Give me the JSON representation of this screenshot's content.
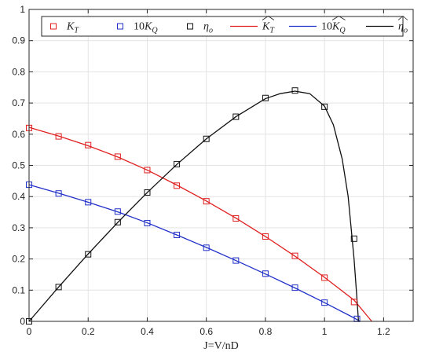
{
  "chart_data": {
    "type": "line",
    "title": "",
    "xlabel": "J=V/nD",
    "ylabel": "",
    "xlim": [
      0,
      1.3
    ],
    "ylim": [
      0,
      1
    ],
    "x_ticks": [
      "0",
      "0.2",
      "0.4",
      "0.6",
      "0.8",
      "1",
      "1.2"
    ],
    "x_tick_values": [
      0,
      0.2,
      0.4,
      0.6,
      0.8,
      1.0,
      1.2
    ],
    "y_ticks": [
      "0",
      "0.1",
      "0.2",
      "0.3",
      "0.4",
      "0.5",
      "0.6",
      "0.7",
      "0.8",
      "0.9",
      "1"
    ],
    "y_tick_values": [
      0,
      0.1,
      0.2,
      0.3,
      0.4,
      0.5,
      0.6,
      0.7,
      0.8,
      0.9,
      1.0
    ],
    "grid": true,
    "legend_position": "top",
    "measured": [
      {
        "label_main": "K",
        "label_sub": "T",
        "color": "#e02020",
        "marker": "square",
        "x": [
          0,
          0.1,
          0.2,
          0.3,
          0.4,
          0.5,
          0.6,
          0.7,
          0.8,
          0.9,
          1.0,
          1.1
        ],
        "y": [
          0.62,
          0.593,
          0.565,
          0.528,
          0.485,
          0.435,
          0.385,
          0.33,
          0.272,
          0.21,
          0.14,
          0.062
        ]
      },
      {
        "label_main": "10K",
        "label_sub": "Q",
        "color": "#2030c8",
        "marker": "square",
        "x": [
          0,
          0.1,
          0.2,
          0.3,
          0.4,
          0.5,
          0.6,
          0.7,
          0.8,
          0.9,
          1.0,
          1.11
        ],
        "y": [
          0.438,
          0.41,
          0.382,
          0.352,
          0.315,
          0.277,
          0.236,
          0.195,
          0.153,
          0.108,
          0.06,
          0.008
        ]
      },
      {
        "label_main": "η",
        "label_sub": "o",
        "color": "#111111",
        "marker": "square",
        "x": [
          0,
          0.1,
          0.2,
          0.3,
          0.4,
          0.5,
          0.6,
          0.7,
          0.8,
          0.9,
          1.0,
          1.1
        ],
        "y": [
          0.0,
          0.11,
          0.215,
          0.318,
          0.413,
          0.504,
          0.585,
          0.656,
          0.716,
          0.74,
          0.688,
          0.265
        ]
      }
    ],
    "fitted": [
      {
        "label_main": "K",
        "label_sub": "T",
        "color": "#e02020",
        "x": [
          0,
          0.1,
          0.2,
          0.3,
          0.4,
          0.5,
          0.6,
          0.7,
          0.8,
          0.9,
          1.0,
          1.1,
          1.16
        ],
        "y": [
          0.622,
          0.594,
          0.563,
          0.527,
          0.485,
          0.437,
          0.386,
          0.331,
          0.272,
          0.209,
          0.141,
          0.068,
          0.0
        ]
      },
      {
        "label_main": "10K",
        "label_sub": "Q",
        "color": "#2030c8",
        "x": [
          0,
          0.1,
          0.2,
          0.3,
          0.4,
          0.5,
          0.6,
          0.7,
          0.8,
          0.9,
          1.0,
          1.1,
          1.12
        ],
        "y": [
          0.438,
          0.411,
          0.382,
          0.351,
          0.316,
          0.277,
          0.237,
          0.195,
          0.152,
          0.107,
          0.06,
          0.011,
          0.0
        ]
      },
      {
        "label_main": "η",
        "label_sub": "o",
        "color": "#111111",
        "x": [
          0,
          0.1,
          0.2,
          0.3,
          0.4,
          0.5,
          0.6,
          0.7,
          0.8,
          0.85,
          0.9,
          0.95,
          1.0,
          1.03,
          1.06,
          1.08,
          1.1,
          1.11,
          1.115
        ],
        "y": [
          0.0,
          0.11,
          0.216,
          0.317,
          0.413,
          0.503,
          0.585,
          0.656,
          0.714,
          0.73,
          0.738,
          0.73,
          0.69,
          0.63,
          0.52,
          0.4,
          0.2,
          0.07,
          0.0
        ]
      }
    ]
  }
}
